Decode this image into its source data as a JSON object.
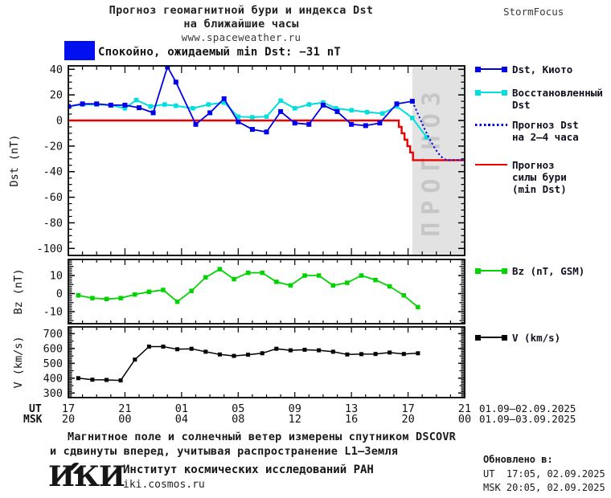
{
  "header": {
    "title_line1": "Прогноз геомагнитной бури и индекса Dst",
    "title_line2": "на ближайшие часы",
    "url": "www.spaceweather.ru",
    "brand": "StormFocus"
  },
  "status": {
    "label": "Спокойно, ожидаемый min Dst: −31 nT",
    "level": "Спокойно",
    "expected_min_dst_nT": -31
  },
  "colors": {
    "dst_kyoto": "#0000e8",
    "restored": "#00dede",
    "forecast_dst": "#0000e8",
    "storm": "#ee0000",
    "bz": "#00d400",
    "v": "#000000",
    "status_box": "#0010ee",
    "forecast_region": "#e2e2e2",
    "forecast_region_label": "#c6c6c6"
  },
  "legend": {
    "dst_kyoto": "Dst, Киото",
    "restored_line1": "Восстановленный",
    "restored_line2": "Dst",
    "forecast_line1": "Прогноз Dst",
    "forecast_line2": "на 2–4 часа",
    "storm_line1": "Прогноз",
    "storm_line2": "силы бури",
    "storm_line3": "(min Dst)",
    "bz": "Bz (nT, GSM)",
    "v": "V (km/s)"
  },
  "xaxis": {
    "ut_label": "UT",
    "msk_label": "MSK",
    "tick_hours": [
      0,
      4,
      8,
      12,
      16,
      20,
      24,
      28
    ],
    "ut_ticks": [
      "17",
      "21",
      "01",
      "05",
      "09",
      "13",
      "17",
      "21"
    ],
    "msk_ticks": [
      "20",
      "00",
      "04",
      "08",
      "12",
      "16",
      "20",
      "00"
    ],
    "ut_date_range": "01.09–02.09.2025",
    "msk_date_range": "01.09–03.09.2025"
  },
  "chart_data": [
    {
      "type": "line",
      "panel": "dst",
      "ylabel": "Dst (nT)",
      "ylim": [
        -100,
        40
      ],
      "ytick_values": [
        40,
        20,
        0,
        -20,
        -40,
        -60,
        -80,
        -100
      ],
      "xlim_hours": [
        0,
        28
      ],
      "x_unit": "hours since 17:00 UT 01.09.2025",
      "grid": false,
      "legend_position": "right",
      "forecast_region": {
        "start_hour": 24.3,
        "end_hour": 28,
        "label": "ПРОГНОЗ"
      },
      "min_dst_forecast_nT": -31,
      "series": [
        {
          "name": "Dst, Киото",
          "color": "#0000e8",
          "marker": true,
          "style": "solid",
          "x": [
            0,
            1,
            2,
            3,
            4,
            5,
            6,
            7,
            7.6,
            9,
            10,
            11,
            12,
            13,
            14,
            15,
            16,
            17,
            18,
            19,
            20,
            21,
            22,
            23.2,
            24.3
          ],
          "y": [
            11,
            13,
            13,
            12,
            12,
            10,
            6,
            42,
            30,
            -3,
            6,
            17,
            -1,
            -7,
            -9,
            7,
            -2,
            -3,
            12,
            7,
            -3,
            -4,
            -2,
            13,
            15
          ]
        },
        {
          "name": "Восстановленный Dst",
          "color": "#00dede",
          "marker": true,
          "style": "solid",
          "x": [
            0,
            1,
            2,
            3,
            4,
            4.8,
            5.8,
            6.8,
            7.6,
            8.8,
            9.9,
            11,
            12,
            13,
            14,
            15,
            16,
            17,
            18,
            18.9,
            20,
            21.1,
            22.2,
            23.2,
            24.3,
            25.3
          ],
          "y": [
            11,
            12.5,
            12.5,
            12,
            9.5,
            16,
            11,
            12.5,
            11.5,
            9.5,
            12.5,
            14,
            3,
            2.5,
            3,
            15.5,
            9.5,
            12.5,
            14,
            9.5,
            8,
            6.5,
            5.5,
            11,
            2,
            -13
          ]
        },
        {
          "name": "Прогноз Dst на 2–4 часа",
          "color": "#0000e8",
          "marker": false,
          "style": "dotted",
          "x": [
            24.3,
            24.7,
            25.1,
            25.5,
            25.9,
            26.3,
            26.7,
            28
          ],
          "y": [
            15,
            5,
            -5,
            -14,
            -22,
            -28,
            -31,
            -31
          ]
        },
        {
          "name": "Прогноз силы бури (min Dst)",
          "color": "#ee0000",
          "marker": false,
          "style": "steps",
          "x": [
            0,
            23.2,
            23.35,
            23.35,
            23.55,
            23.55,
            23.75,
            23.75,
            23.95,
            23.95,
            24.15,
            24.15,
            24.35,
            24.35,
            28
          ],
          "y": [
            0,
            0,
            0,
            -5,
            -5,
            -10,
            -10,
            -15,
            -15,
            -20,
            -20,
            -25,
            -25,
            -31,
            -31
          ]
        }
      ]
    },
    {
      "type": "line",
      "panel": "bz",
      "ylabel": "Bz (nT)",
      "ylim": [
        -17,
        19
      ],
      "ytick_values": [
        10,
        0,
        -10
      ],
      "xlim_hours": [
        0,
        28
      ],
      "grid": false,
      "series": [
        {
          "name": "Bz (nT, GSM)",
          "color": "#00d400",
          "marker": true,
          "style": "solid",
          "x": [
            0.7,
            1.7,
            2.7,
            3.7,
            4.7,
            5.7,
            6.7,
            7.7,
            8.7,
            9.7,
            10.7,
            11.7,
            12.7,
            13.7,
            14.7,
            15.7,
            16.7,
            17.7,
            18.7,
            19.7,
            20.7,
            21.7,
            22.7,
            23.7,
            24.7
          ],
          "y": [
            -1,
            -2.5,
            -3,
            -2.5,
            -0.5,
            1,
            2,
            -4.5,
            1.5,
            9,
            13.5,
            8,
            11.5,
            11.5,
            6.5,
            4.5,
            10,
            10,
            4.5,
            6,
            10,
            7.5,
            4,
            -1,
            -7.5
          ]
        }
      ]
    },
    {
      "type": "line",
      "panel": "v",
      "ylabel": "V (km/s)",
      "ylim": [
        300,
        700
      ],
      "ytick_values": [
        700,
        600,
        500,
        400,
        300
      ],
      "xlim_hours": [
        0,
        28
      ],
      "grid": false,
      "series": [
        {
          "name": "V (km/s)",
          "color": "#000000",
          "marker": true,
          "style": "solid",
          "x": [
            0.7,
            1.7,
            2.7,
            3.7,
            4.7,
            5.7,
            6.7,
            7.7,
            8.7,
            9.7,
            10.7,
            11.7,
            12.7,
            13.7,
            14.7,
            15.7,
            16.7,
            17.7,
            18.7,
            19.7,
            20.7,
            21.7,
            22.7,
            23.7,
            24.7
          ],
          "y": [
            400,
            390,
            388,
            385,
            525,
            613,
            613,
            595,
            598,
            578,
            560,
            550,
            558,
            568,
            598,
            588,
            592,
            588,
            578,
            560,
            562,
            563,
            573,
            563,
            568
          ]
        }
      ]
    }
  ],
  "footer": {
    "note_line1": "Магнитное поле и солнечный ветер измерены спутником DSCOVR",
    "note_line2": "и сдвинуты вперед, учитывая распространение L1–Земля",
    "logo_text": "ИКИ",
    "institute": "Институт космических исследований РАН",
    "site": "iki.cosmos.ru",
    "updated_label": "Обновлено в:",
    "updated_ut": "UT  17:05, 02.09.2025",
    "updated_msk": "MSK 20:05, 02.09.2025"
  }
}
